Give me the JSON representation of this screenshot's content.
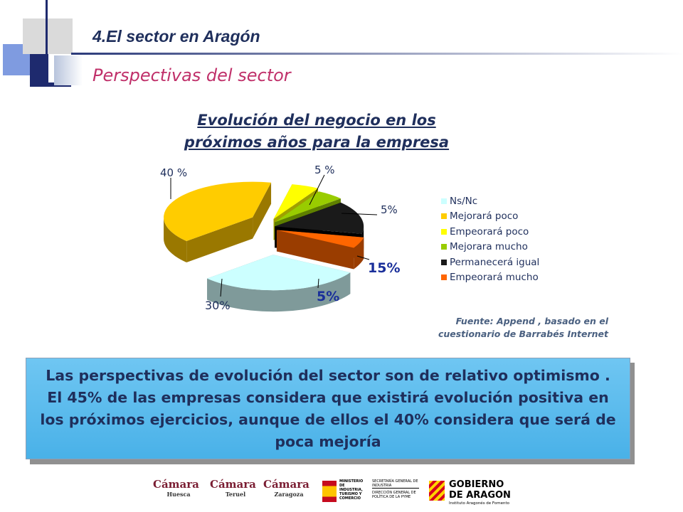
{
  "header": {
    "title": "4.El sector en Aragón",
    "subtitle": "Perspectivas del sector"
  },
  "chart_data": {
    "type": "pie",
    "title_line1": "Evolución del negocio en los",
    "title_line2": "próximos años para la empresa",
    "slices": [
      {
        "label": "Ns/Nc",
        "value": 30,
        "display": "30%",
        "color": "#ccffff",
        "side": "#7f9a9a"
      },
      {
        "label": "Mejorará poco",
        "value": 40,
        "display": "40 %",
        "color": "#ffcc00",
        "side": "#9a7800"
      },
      {
        "label": "Empeorará poco",
        "value": 5,
        "display": "5 %",
        "color": "#ffff00",
        "side": "#a0a000"
      },
      {
        "label": "Mejorara mucho",
        "value": 5,
        "display": "5%",
        "color": "#99cc00",
        "side": "#5f8000"
      },
      {
        "label": "Permanecerá igual",
        "value": 15,
        "display": "15%",
        "color": "#1a1a1a",
        "side": "#000000"
      },
      {
        "label": "Empeorará mucho",
        "value": 5,
        "display": "5%",
        "color": "#ff6600",
        "side": "#9a3d00"
      }
    ],
    "legend": [
      "Ns/Nc",
      "Mejorará poco",
      "Empeorará poco",
      "Mejorara mucho",
      "Permanecerá igual",
      "Empeorará mucho"
    ],
    "legend_placement": "right"
  },
  "source": {
    "line1": "Fuente: Append , basado en el",
    "line2": "cuestionario de Barrabés Internet"
  },
  "callout": {
    "text": "Las perspectivas de evolución del sector son de relativo optimismo . El 45% de las empresas considera que existirá evolución positiva en los próximos ejercicios, aunque de ellos el 40% considera que será de poca mejoría"
  },
  "footer": {
    "logo1": "Cámara",
    "logo1_sub": "Huesca",
    "logo2": "Cámara",
    "logo2_sub": "Teruel",
    "logo3": "Cámara",
    "logo3_sub": "Zaragoza",
    "ministry": "MINISTERIO DE INDUSTRIA, TURISMO Y COMERCIO",
    "secretariat": "SECRETARÍA GENERAL DE INDUSTRIA",
    "directorate": "DIRECCIÓN GENERAL DE POLÍTICA DE LA PYME",
    "gov_line1": "GOBIERNO",
    "gov_line2": "DE ARAGON",
    "gov_sub": "Instituto Aragonés de Fomento"
  }
}
